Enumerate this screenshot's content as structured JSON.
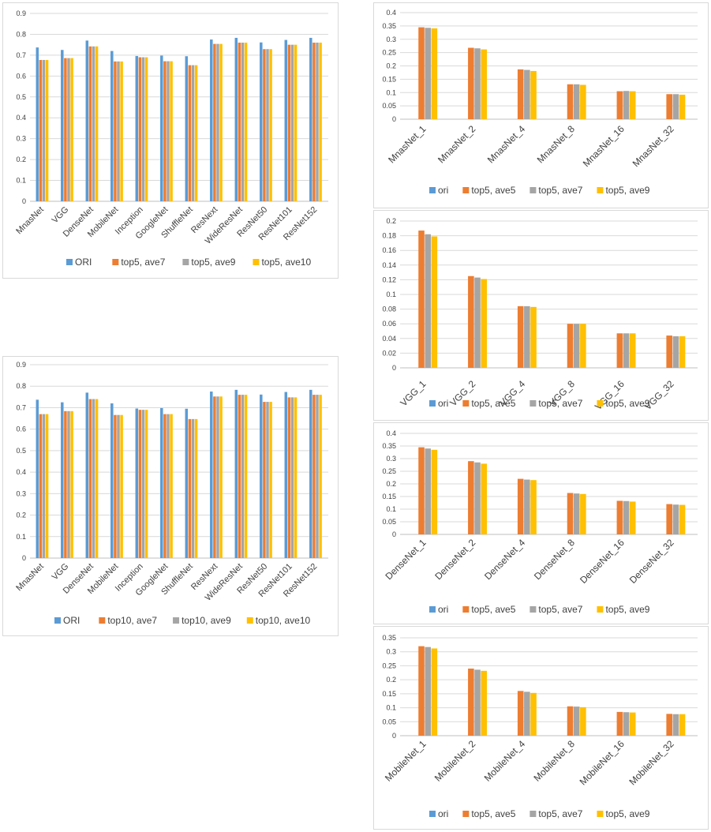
{
  "colors": {
    "ori": "#5B9BD5",
    "s1": "#ED7D31",
    "s2": "#A5A5A5",
    "s3": "#FFC000"
  },
  "chart_data": [
    {
      "id": "c1",
      "type": "bar",
      "ylim": [
        0,
        0.9
      ],
      "yticks": [
        0,
        0.1,
        0.2,
        0.3,
        0.4,
        0.5,
        0.6,
        0.7,
        0.8,
        0.9
      ],
      "categories": [
        "MnasNet",
        "VGG",
        "DenseNet",
        "MobileNet",
        "Inception",
        "GoogleNet",
        "ShuffleNet",
        "ResNext",
        "WideResNet",
        "ResNet50",
        "ResNet101",
        "ResNet152"
      ],
      "legend_position": "bottom",
      "series": [
        {
          "name": "ORI",
          "values": [
            0.737,
            0.725,
            0.77,
            0.72,
            0.696,
            0.698,
            0.695,
            0.775,
            0.783,
            0.761,
            0.773,
            0.783
          ]
        },
        {
          "name": "top5, ave7",
          "values": [
            0.677,
            0.686,
            0.742,
            0.67,
            0.69,
            0.671,
            0.652,
            0.754,
            0.76,
            0.729,
            0.75,
            0.76
          ]
        },
        {
          "name": "top5, ave9",
          "values": [
            0.677,
            0.686,
            0.742,
            0.67,
            0.69,
            0.671,
            0.652,
            0.754,
            0.76,
            0.729,
            0.75,
            0.76
          ]
        },
        {
          "name": "top5, ave10",
          "values": [
            0.677,
            0.686,
            0.742,
            0.67,
            0.69,
            0.671,
            0.652,
            0.754,
            0.76,
            0.729,
            0.75,
            0.76
          ]
        }
      ]
    },
    {
      "id": "c2",
      "type": "bar",
      "ylim": [
        0,
        0.9
      ],
      "yticks": [
        0,
        0.1,
        0.2,
        0.3,
        0.4,
        0.5,
        0.6,
        0.7,
        0.8,
        0.9
      ],
      "categories": [
        "MnasNet",
        "VGG",
        "DenseNet",
        "MobileNet",
        "Inception",
        "GoogleNet",
        "ShuffleNet",
        "ResNext",
        "WideResNet",
        "ResNet50",
        "ResNet101",
        "ResNet152"
      ],
      "legend_position": "bottom",
      "series": [
        {
          "name": "ORI",
          "values": [
            0.737,
            0.725,
            0.77,
            0.72,
            0.696,
            0.698,
            0.695,
            0.775,
            0.783,
            0.761,
            0.773,
            0.783
          ]
        },
        {
          "name": "top10, ave7",
          "values": [
            0.67,
            0.684,
            0.74,
            0.666,
            0.69,
            0.67,
            0.647,
            0.752,
            0.76,
            0.727,
            0.748,
            0.76
          ]
        },
        {
          "name": "top10, ave9",
          "values": [
            0.67,
            0.684,
            0.74,
            0.666,
            0.69,
            0.67,
            0.647,
            0.752,
            0.76,
            0.727,
            0.748,
            0.76
          ]
        },
        {
          "name": "top10, ave10",
          "values": [
            0.67,
            0.684,
            0.74,
            0.666,
            0.69,
            0.67,
            0.647,
            0.752,
            0.76,
            0.727,
            0.748,
            0.76
          ]
        }
      ]
    },
    {
      "id": "c3",
      "type": "bar",
      "ylim": [
        0,
        0.4
      ],
      "yticks": [
        0,
        0.05,
        0.1,
        0.15,
        0.2,
        0.25,
        0.3,
        0.35,
        0.4
      ],
      "categories": [
        "MnasNet_1",
        "MnasNet_2",
        "MnasNet_4",
        "MnasNet_8",
        "MnasNet_16",
        "MnasNet_32"
      ],
      "legend_position": "bottom",
      "series": [
        {
          "name": "ori",
          "values": [
            0,
            0,
            0,
            0,
            0,
            0
          ]
        },
        {
          "name": "top5, ave5",
          "values": [
            0.345,
            0.268,
            0.187,
            0.131,
            0.105,
            0.094
          ]
        },
        {
          "name": "top5, ave7",
          "values": [
            0.343,
            0.266,
            0.185,
            0.131,
            0.106,
            0.094
          ]
        },
        {
          "name": "top5, ave9",
          "values": [
            0.341,
            0.262,
            0.181,
            0.129,
            0.105,
            0.092
          ]
        }
      ]
    },
    {
      "id": "c4",
      "type": "bar",
      "ylim": [
        0,
        0.2
      ],
      "yticks": [
        0,
        0.02,
        0.04,
        0.06,
        0.08,
        0.1,
        0.12,
        0.14,
        0.16,
        0.18,
        0.2
      ],
      "categories": [
        "VGG_1",
        "VGG_2",
        "VGG_4",
        "VGG_8",
        "VGG_16",
        "VGG_32"
      ],
      "legend_position": "bottom",
      "series": [
        {
          "name": "ori",
          "values": [
            0,
            0,
            0,
            0,
            0,
            0
          ]
        },
        {
          "name": "top5, ave5",
          "values": [
            0.187,
            0.125,
            0.084,
            0.06,
            0.047,
            0.044
          ]
        },
        {
          "name": "top5, ave7",
          "values": [
            0.182,
            0.123,
            0.084,
            0.06,
            0.047,
            0.043
          ]
        },
        {
          "name": "top5, ave9",
          "values": [
            0.179,
            0.121,
            0.083,
            0.06,
            0.047,
            0.043
          ]
        }
      ]
    },
    {
      "id": "c5",
      "type": "bar",
      "ylim": [
        0,
        0.4
      ],
      "yticks": [
        0,
        0.05,
        0.1,
        0.15,
        0.2,
        0.25,
        0.3,
        0.35,
        0.4
      ],
      "categories": [
        "DenseNet_1",
        "DenseNet_2",
        "DenseNet_4",
        "DenseNet_8",
        "DenseNet_16",
        "DenseNet_32"
      ],
      "legend_position": "bottom",
      "series": [
        {
          "name": "ori",
          "values": [
            0,
            0,
            0,
            0,
            0,
            0
          ]
        },
        {
          "name": "top5, ave5",
          "values": [
            0.345,
            0.29,
            0.22,
            0.164,
            0.133,
            0.12
          ]
        },
        {
          "name": "top5, ave7",
          "values": [
            0.34,
            0.285,
            0.217,
            0.162,
            0.132,
            0.118
          ]
        },
        {
          "name": "top5, ave9",
          "values": [
            0.335,
            0.28,
            0.215,
            0.16,
            0.13,
            0.117
          ]
        }
      ]
    },
    {
      "id": "c6",
      "type": "bar",
      "ylim": [
        0,
        0.35
      ],
      "yticks": [
        0,
        0.05,
        0.1,
        0.15,
        0.2,
        0.25,
        0.3,
        0.35
      ],
      "categories": [
        "MobileNet_1",
        "MobileNet_2",
        "MobileNet_4",
        "MobileNet_8",
        "MobileNet_16",
        "MobileNet_32"
      ],
      "legend_position": "bottom",
      "series": [
        {
          "name": "ori",
          "values": [
            0,
            0,
            0,
            0,
            0,
            0
          ]
        },
        {
          "name": "top5, ave5",
          "values": [
            0.32,
            0.24,
            0.16,
            0.105,
            0.085,
            0.078
          ]
        },
        {
          "name": "top5, ave7",
          "values": [
            0.317,
            0.236,
            0.157,
            0.104,
            0.084,
            0.077
          ]
        },
        {
          "name": "top5, ave9",
          "values": [
            0.312,
            0.232,
            0.153,
            0.102,
            0.083,
            0.077
          ]
        }
      ]
    }
  ]
}
